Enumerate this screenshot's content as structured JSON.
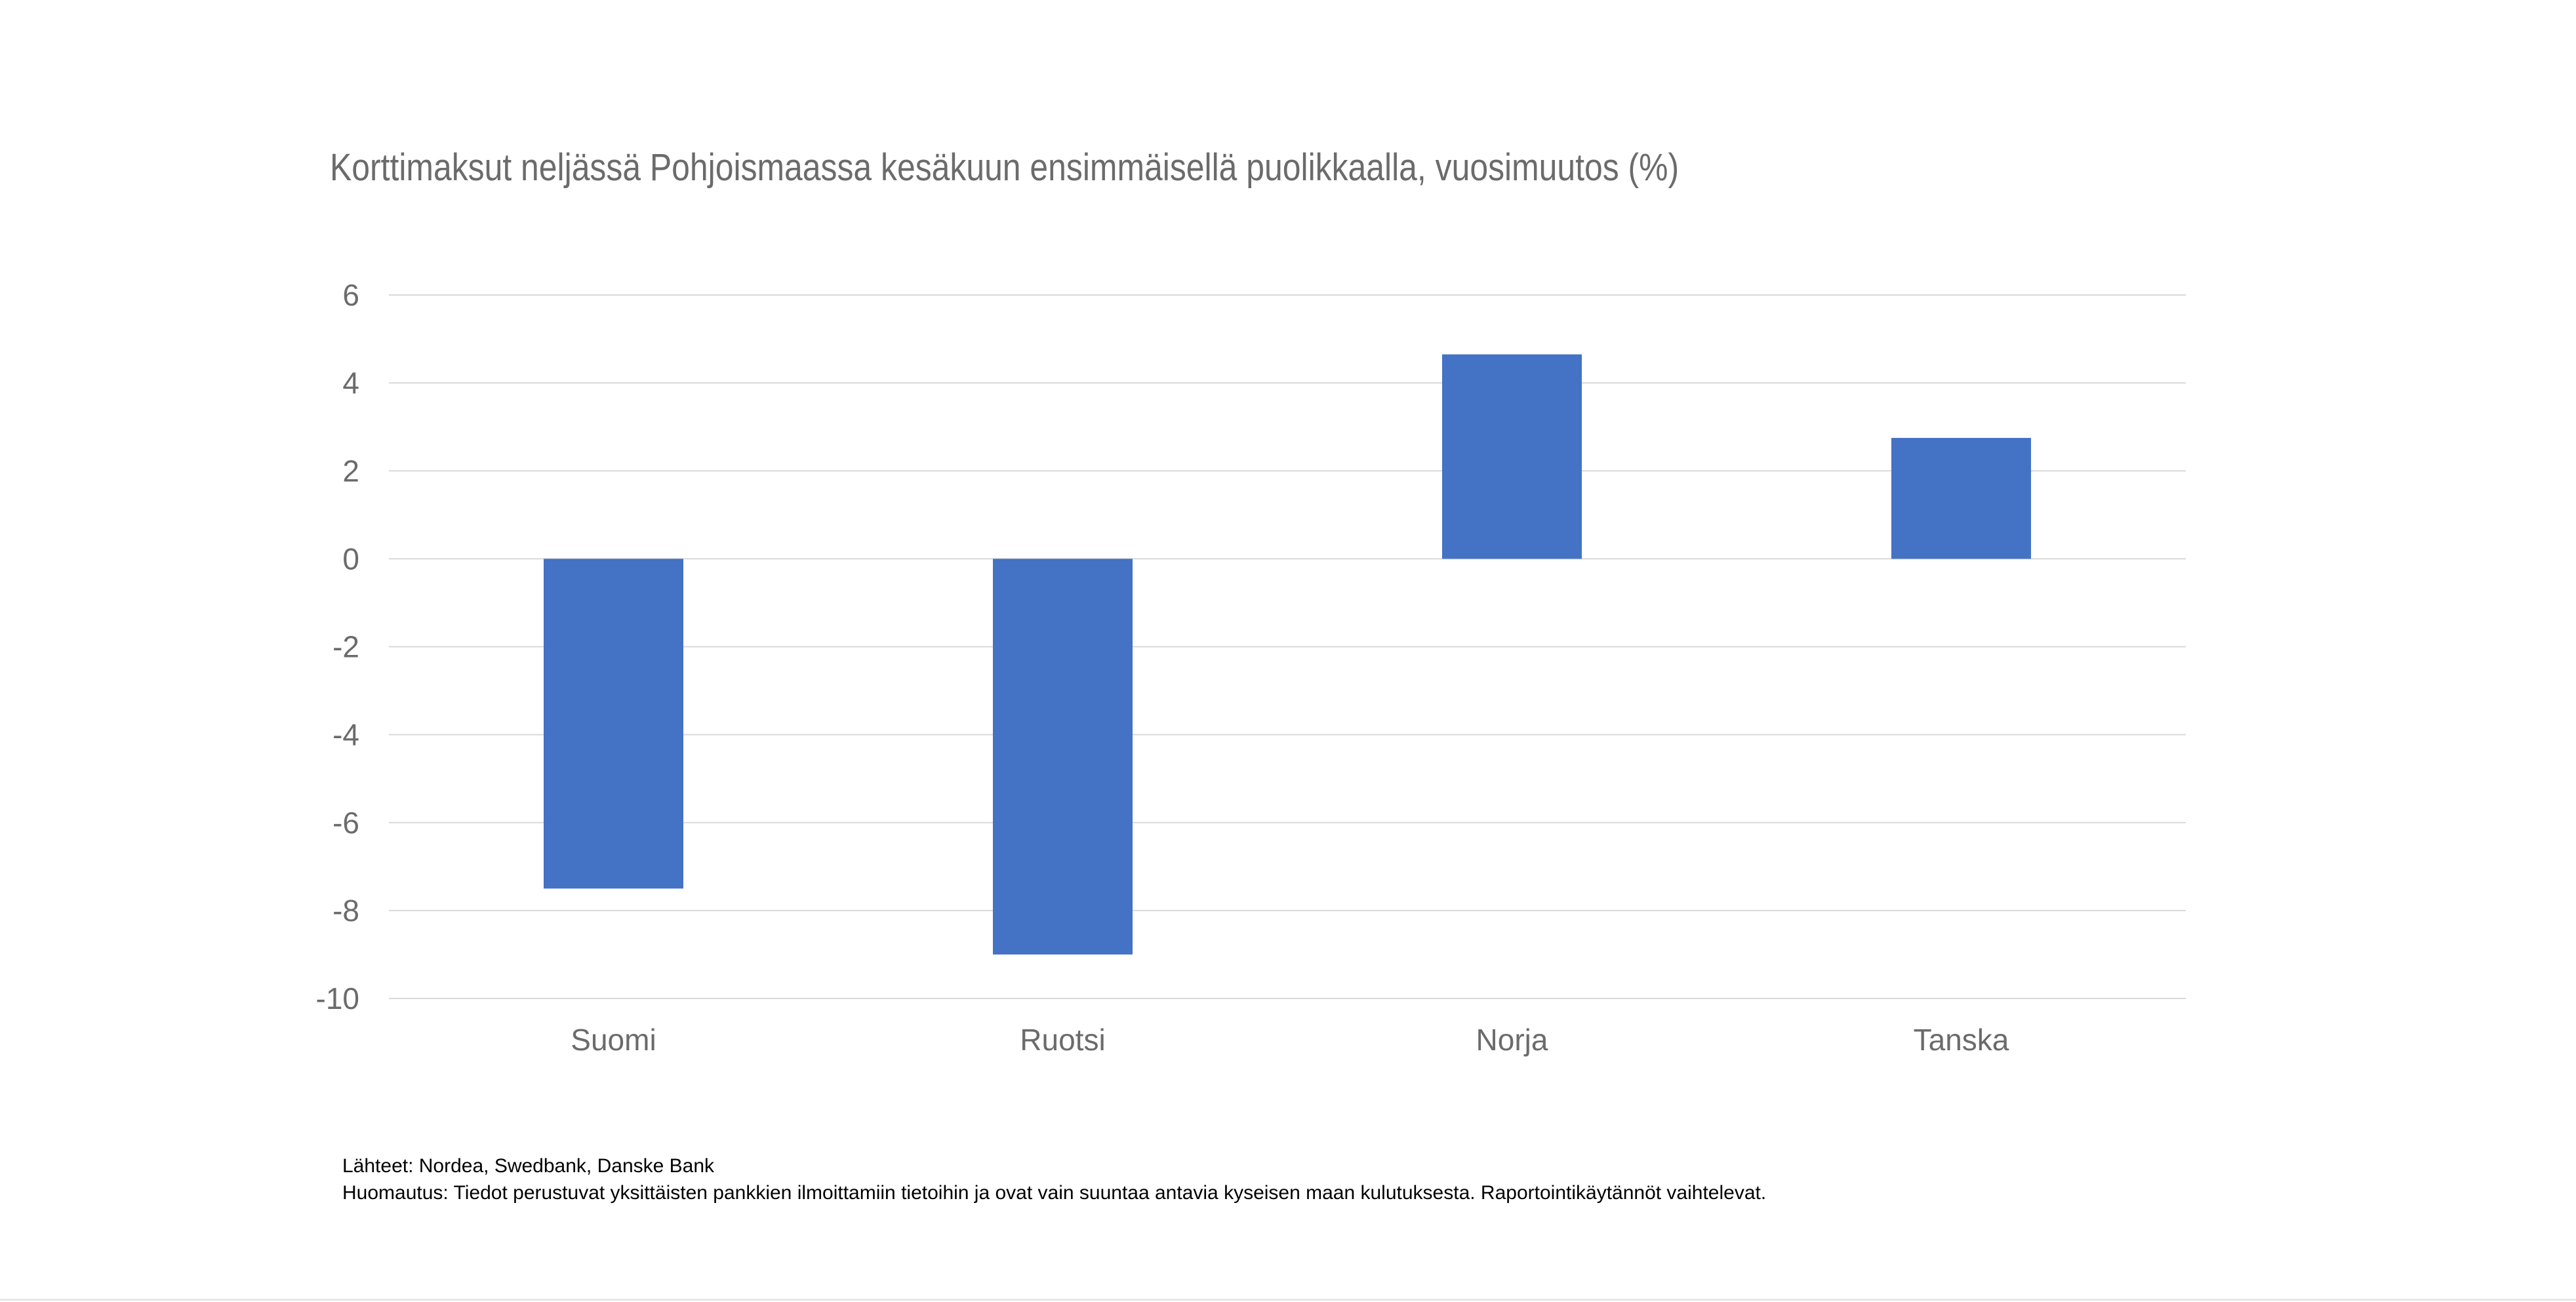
{
  "chart_data": {
    "type": "bar",
    "title": "Korttimaksut neljässä Pohjoismaassa kesäkuun ensimmäisellä puolikkaalla, vuosimuutos (%)",
    "categories": [
      "Suomi",
      "Ruotsi",
      "Norja",
      "Tanska"
    ],
    "values": [
      -7.5,
      -9.0,
      4.65,
      2.75
    ],
    "ylim": [
      -10,
      6
    ],
    "yticks": [
      6,
      4,
      2,
      0,
      -2,
      -4,
      -6,
      -8,
      -10
    ],
    "xlabel": "",
    "ylabel": "",
    "grid": true,
    "legend": "none",
    "bar_color": "#4472C4"
  },
  "notes": {
    "sources": "Lähteet: Nordea, Swedbank, Danske Bank",
    "remark": "Huomautus: Tiedot perustuvat yksittäisten pankkien ilmoittamiin tietoihin ja ovat vain suuntaa antavia kyseisen maan kulutuksesta. Raportointikäytännöt vaihtelevat."
  }
}
